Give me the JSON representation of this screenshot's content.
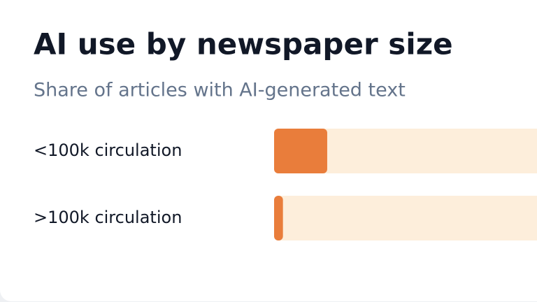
{
  "chart_data": {
    "type": "hbar",
    "title": "AI use by newspaper size",
    "subtitle": "Share of articles with AI-generated text",
    "categories": [
      "<100k circulation",
      ">100k circulation"
    ],
    "values": [
      9,
      1.5
    ],
    "color": "#e97d3b",
    "track_color": "#fdeedb",
    "xlim": [
      0,
      100
    ]
  }
}
